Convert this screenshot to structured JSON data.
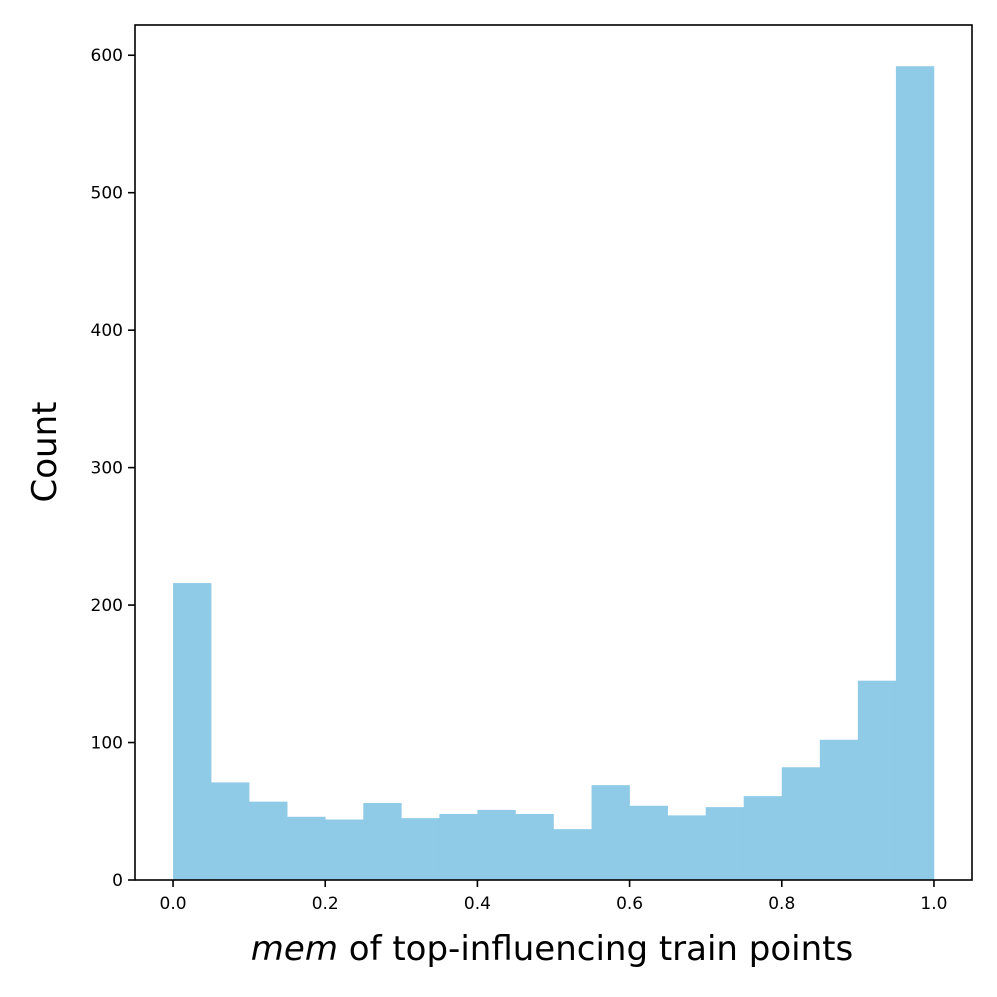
{
  "chart_data": {
    "type": "bar",
    "histogram": true,
    "bin_edges": [
      0.0,
      0.05,
      0.1,
      0.15,
      0.2,
      0.25,
      0.3,
      0.35,
      0.4,
      0.45,
      0.5,
      0.55,
      0.6,
      0.65,
      0.7,
      0.75,
      0.8,
      0.85,
      0.9,
      0.95,
      1.0
    ],
    "values": [
      216,
      71,
      57,
      46,
      44,
      56,
      45,
      48,
      51,
      48,
      37,
      69,
      54,
      47,
      53,
      61,
      82,
      102,
      145,
      592
    ],
    "title": "",
    "xlabel_emphasis": "mem",
    "xlabel_rest": " of top-influencing train points",
    "ylabel": "Count",
    "xlim": [
      -0.05,
      1.05
    ],
    "ylim": [
      0,
      622
    ],
    "xticks": [
      "0.0",
      "0.2",
      "0.4",
      "0.6",
      "0.8",
      "1.0"
    ],
    "yticks": [
      "0",
      "100",
      "200",
      "300",
      "400",
      "500",
      "600"
    ],
    "grid": false,
    "legend": "none",
    "bar_color": "#8fcae6"
  }
}
